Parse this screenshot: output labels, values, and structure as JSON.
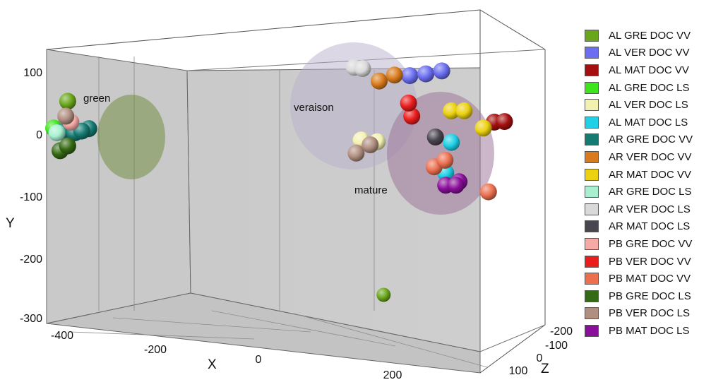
{
  "chart_data": {
    "type": "scatter",
    "title": "",
    "xlabel": "X",
    "ylabel": "Y",
    "zlabel": "Z",
    "x_ticks": [
      "-400",
      "-200",
      "0",
      "200"
    ],
    "y_ticks": [
      "100",
      "0",
      "-100",
      "-200",
      "-300"
    ],
    "z_ticks": [
      "-200",
      "-100",
      "0",
      "100"
    ],
    "xlim": [
      -400,
      300
    ],
    "ylim": [
      -320,
      140
    ],
    "zlim": [
      -200,
      120
    ],
    "grid": true,
    "legend_position": "right",
    "clusters": [
      {
        "label": "green",
        "color": "#6e8a3a"
      },
      {
        "label": "veraison",
        "color": "#b9b0cc"
      },
      {
        "label": "mature",
        "color": "#9a6f95"
      }
    ],
    "series": [
      {
        "name": "AL GRE DOC VV",
        "color": "#6aa61c",
        "points": [
          {
            "x": -367,
            "y": 53
          },
          {
            "x": 127,
            "y": -272
          }
        ]
      },
      {
        "name": "AL VER DOC VV",
        "color": "#6b6ef0",
        "points": [
          {
            "x": 168,
            "y": 96
          },
          {
            "x": 193,
            "y": 99
          },
          {
            "x": 218,
            "y": 104
          }
        ]
      },
      {
        "name": "AL MAT DOC VV",
        "color": "#a50f0f",
        "points": [
          {
            "x": 300,
            "y": 18
          },
          {
            "x": 316,
            "y": 19
          }
        ]
      },
      {
        "name": "AL GRE DOC LS",
        "color": "#3fe51c",
        "points": [
          {
            "x": -389,
            "y": 8
          }
        ]
      },
      {
        "name": "AL VER DOC LS",
        "color": "#f3f1b0",
        "points": [
          {
            "x": 92,
            "y": -12
          },
          {
            "x": 117,
            "y": -15
          }
        ]
      },
      {
        "name": "AL MAT DOC LS",
        "color": "#1fd0e6",
        "points": [
          {
            "x": 233,
            "y": -16
          },
          {
            "x": 224,
            "y": -67
          }
        ]
      },
      {
        "name": "AR GRE DOC VV",
        "color": "#157a72",
        "points": [
          {
            "x": -375,
            "y": 2
          },
          {
            "x": -356,
            "y": 0
          },
          {
            "x": -334,
            "y": 7
          },
          {
            "x": -345,
            "y": 3
          }
        ]
      },
      {
        "name": "AR VER DOC VV",
        "color": "#d97b1c",
        "points": [
          {
            "x": 120,
            "y": 87
          },
          {
            "x": 144,
            "y": 97
          }
        ]
      },
      {
        "name": "AR MAT DOC VV",
        "color": "#ebd10f",
        "points": [
          {
            "x": 233,
            "y": 37
          },
          {
            "x": 253,
            "y": 37
          },
          {
            "x": 283,
            "y": 8
          }
        ]
      },
      {
        "name": "AR GRE DOC LS",
        "color": "#a6f0d0",
        "points": [
          {
            "x": -384,
            "y": 0
          }
        ]
      },
      {
        "name": "AR VER DOC LS",
        "color": "#d9d9d9",
        "points": [
          {
            "x": 81,
            "y": 110
          },
          {
            "x": 94,
            "y": 108
          }
        ]
      },
      {
        "name": "AR MAT DOC LS",
        "color": "#4a4650",
        "points": [
          {
            "x": 208,
            "y": -7
          }
        ]
      },
      {
        "name": "PB GRE DOC VV",
        "color": "#f6aaa6",
        "points": [
          {
            "x": -362,
            "y": 18
          }
        ]
      },
      {
        "name": "PB VER DOC VV",
        "color": "#ea1c1c",
        "points": [
          {
            "x": 171,
            "y": 28
          },
          {
            "x": 166,
            "y": 50
          }
        ]
      },
      {
        "name": "PB MAT DOC VV",
        "color": "#ec7050",
        "points": [
          {
            "x": 206,
            "y": -57
          },
          {
            "x": 223,
            "y": -46
          },
          {
            "x": 291,
            "y": -99
          }
        ]
      },
      {
        "name": "PB GRE DOC LS",
        "color": "#356a14",
        "points": [
          {
            "x": -379,
            "y": -30
          },
          {
            "x": -367,
            "y": -22
          }
        ]
      },
      {
        "name": "PB VER DOC LS",
        "color": "#b08e80",
        "points": [
          {
            "x": -370,
            "y": 28
          },
          {
            "x": 84,
            "y": -34
          },
          {
            "x": 106,
            "y": -20
          }
        ]
      },
      {
        "name": "PB MAT DOC LS",
        "color": "#8a0f9a",
        "points": [
          {
            "x": 224,
            "y": -88
          },
          {
            "x": 245,
            "y": -82
          },
          {
            "x": 240,
            "y": -88
          }
        ]
      }
    ]
  }
}
